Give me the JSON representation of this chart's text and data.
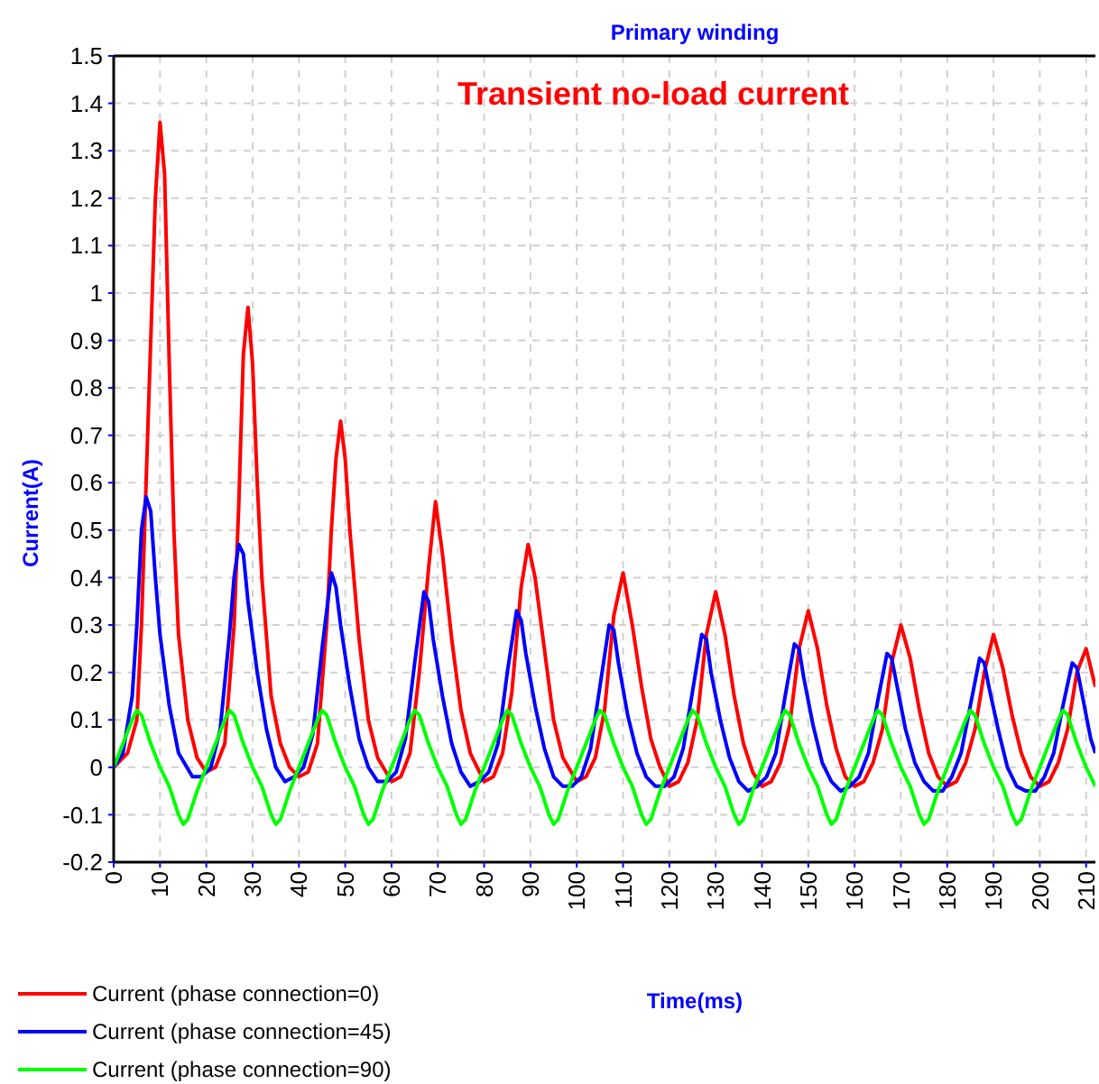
{
  "chart_data": {
    "type": "line",
    "title": "Primary winding",
    "subtitle": "Transient no-load current",
    "xlabel": "Time(ms)",
    "ylabel": "Current(A)",
    "xlim": [
      0,
      212
    ],
    "xticks": [
      0,
      10,
      20,
      30,
      40,
      50,
      60,
      70,
      80,
      90,
      100,
      110,
      120,
      130,
      140,
      150,
      160,
      170,
      180,
      190,
      200,
      210
    ],
    "ylim": [
      -0.2,
      1.5
    ],
    "yticks": [
      -0.2,
      -0.1,
      0,
      0.1,
      0.2,
      0.3,
      0.4,
      0.5,
      0.6,
      0.7,
      0.8,
      0.9,
      1,
      1.1,
      1.2,
      1.3,
      1.4,
      1.5
    ],
    "grid": true,
    "legend": "bottom left",
    "line_style": "solid",
    "series": [
      {
        "name": "Current (phase connection=0)",
        "color": "#ff0000",
        "x": [
          0,
          3,
          5,
          6,
          7,
          8,
          9,
          10,
          11,
          12,
          13,
          14,
          16,
          18,
          20,
          22,
          24,
          26,
          27,
          28,
          29,
          30,
          31,
          32,
          34,
          36,
          38,
          40,
          42,
          44,
          46,
          47,
          48,
          49,
          50,
          51,
          53,
          55,
          57,
          60,
          62,
          64,
          66,
          68,
          69.5,
          71,
          73,
          75,
          77,
          80,
          82,
          84,
          86,
          88,
          89.5,
          91,
          93,
          95,
          97,
          100,
          102,
          104,
          106,
          108,
          110,
          112,
          114,
          116,
          118,
          120,
          122,
          124,
          126,
          128,
          130,
          132,
          134,
          136,
          138,
          140,
          142,
          144,
          146,
          148,
          150,
          152,
          154,
          156,
          158,
          160,
          162,
          164,
          166,
          168,
          170,
          172,
          174,
          176,
          178,
          180,
          182,
          184,
          186,
          188,
          190,
          192,
          194,
          196,
          198,
          200,
          202,
          204,
          206,
          208,
          210,
          212
        ],
        "values": [
          0,
          0.03,
          0.1,
          0.3,
          0.6,
          0.9,
          1.2,
          1.36,
          1.25,
          0.85,
          0.5,
          0.28,
          0.1,
          0.02,
          -0.01,
          0,
          0.05,
          0.3,
          0.55,
          0.87,
          0.97,
          0.85,
          0.6,
          0.4,
          0.15,
          0.05,
          0,
          -0.02,
          -0.01,
          0.05,
          0.3,
          0.5,
          0.65,
          0.73,
          0.65,
          0.5,
          0.27,
          0.1,
          0.02,
          -0.03,
          -0.02,
          0.03,
          0.2,
          0.42,
          0.56,
          0.45,
          0.27,
          0.12,
          0.03,
          -0.03,
          -0.02,
          0.03,
          0.16,
          0.38,
          0.47,
          0.4,
          0.25,
          0.1,
          0.02,
          -0.03,
          -0.02,
          0.02,
          0.12,
          0.32,
          0.41,
          0.3,
          0.17,
          0.06,
          0,
          -0.04,
          -0.03,
          0.01,
          0.1,
          0.28,
          0.37,
          0.28,
          0.15,
          0.05,
          -0.01,
          -0.04,
          -0.03,
          0.01,
          0.09,
          0.25,
          0.33,
          0.25,
          0.13,
          0.04,
          -0.02,
          -0.04,
          -0.03,
          0.01,
          0.08,
          0.22,
          0.3,
          0.23,
          0.12,
          0.03,
          -0.02,
          -0.04,
          -0.03,
          0.01,
          0.08,
          0.2,
          0.28,
          0.21,
          0.11,
          0.03,
          -0.02,
          -0.04,
          -0.03,
          0.01,
          0.08,
          0.2,
          0.25,
          0.17
        ]
      },
      {
        "name": "Current (phase connection=45)",
        "color": "#0000ff",
        "x": [
          0,
          2,
          4,
          5,
          6,
          7,
          8,
          9,
          10,
          12,
          14,
          17,
          19,
          21,
          23,
          25,
          26,
          27,
          28,
          29,
          31,
          33,
          35,
          37,
          39,
          41,
          43,
          45,
          47,
          48,
          49,
          51,
          53,
          55,
          57,
          59,
          61,
          63,
          65,
          67,
          68,
          69,
          71,
          73,
          75,
          77,
          79,
          81,
          83,
          85,
          87,
          88,
          89,
          91,
          93,
          95,
          97,
          99,
          101,
          103,
          105,
          107,
          108,
          109,
          111,
          113,
          115,
          117,
          119,
          121,
          123,
          125,
          127,
          128,
          129,
          131,
          133,
          135,
          137,
          139,
          141,
          143,
          145,
          147,
          148,
          149,
          151,
          153,
          155,
          157,
          159,
          161,
          163,
          165,
          167,
          168,
          169,
          171,
          173,
          175,
          177,
          179,
          181,
          183,
          185,
          187,
          188,
          189,
          191,
          193,
          195,
          197,
          199,
          201,
          203,
          205,
          207,
          208,
          209,
          211,
          212
        ],
        "values": [
          0,
          0.03,
          0.15,
          0.3,
          0.5,
          0.57,
          0.54,
          0.4,
          0.28,
          0.13,
          0.03,
          -0.02,
          -0.02,
          0,
          0.08,
          0.28,
          0.4,
          0.47,
          0.45,
          0.35,
          0.2,
          0.08,
          0,
          -0.03,
          -0.02,
          0,
          0.07,
          0.25,
          0.41,
          0.38,
          0.3,
          0.17,
          0.06,
          0,
          -0.03,
          -0.03,
          -0.01,
          0.06,
          0.22,
          0.37,
          0.35,
          0.27,
          0.15,
          0.05,
          -0.01,
          -0.04,
          -0.03,
          -0.01,
          0.05,
          0.2,
          0.33,
          0.31,
          0.24,
          0.13,
          0.04,
          -0.02,
          -0.04,
          -0.04,
          -0.02,
          0.04,
          0.17,
          0.3,
          0.29,
          0.22,
          0.11,
          0.03,
          -0.02,
          -0.04,
          -0.04,
          -0.02,
          0.04,
          0.16,
          0.28,
          0.27,
          0.2,
          0.1,
          0.02,
          -0.03,
          -0.05,
          -0.04,
          -0.02,
          0.03,
          0.15,
          0.26,
          0.25,
          0.19,
          0.09,
          0.01,
          -0.03,
          -0.05,
          -0.04,
          -0.02,
          0.03,
          0.14,
          0.24,
          0.23,
          0.18,
          0.08,
          0.01,
          -0.03,
          -0.05,
          -0.05,
          -0.02,
          0.03,
          0.13,
          0.23,
          0.22,
          0.17,
          0.08,
          0,
          -0.04,
          -0.05,
          -0.05,
          -0.02,
          0.03,
          0.13,
          0.22,
          0.21,
          0.16,
          0.06,
          0.03
        ]
      },
      {
        "name": "Current (phase connection=90)",
        "color": "#00ff00",
        "x": [
          0,
          2,
          4,
          5,
          6,
          8,
          10,
          12,
          14,
          15,
          16,
          18,
          20,
          22,
          24,
          25,
          26,
          28,
          30,
          32,
          34,
          35,
          36,
          38,
          40,
          42,
          44,
          45,
          46,
          48,
          50,
          52,
          54,
          55,
          56,
          58,
          60,
          62,
          64,
          65,
          66,
          68,
          70,
          72,
          74,
          75,
          76,
          78,
          80,
          82,
          84,
          85,
          86,
          88,
          90,
          92,
          94,
          95,
          96,
          98,
          100,
          102,
          104,
          105,
          106,
          108,
          110,
          112,
          114,
          115,
          116,
          118,
          120,
          122,
          124,
          125,
          126,
          128,
          130,
          132,
          134,
          135,
          136,
          138,
          140,
          142,
          144,
          145,
          146,
          148,
          150,
          152,
          154,
          155,
          156,
          158,
          160,
          162,
          164,
          165,
          166,
          168,
          170,
          172,
          174,
          175,
          176,
          178,
          180,
          182,
          184,
          185,
          186,
          188,
          190,
          192,
          194,
          195,
          196,
          198,
          200,
          202,
          204,
          205,
          206,
          208,
          210,
          212
        ],
        "values": [
          0,
          0.05,
          0.1,
          0.12,
          0.11,
          0.05,
          0,
          -0.04,
          -0.1,
          -0.12,
          -0.11,
          -0.05,
          0,
          0.05,
          0.1,
          0.12,
          0.11,
          0.05,
          0,
          -0.04,
          -0.1,
          -0.12,
          -0.11,
          -0.05,
          0,
          0.05,
          0.1,
          0.12,
          0.11,
          0.05,
          0,
          -0.04,
          -0.1,
          -0.12,
          -0.11,
          -0.05,
          0,
          0.05,
          0.1,
          0.12,
          0.11,
          0.05,
          0,
          -0.04,
          -0.1,
          -0.12,
          -0.11,
          -0.05,
          0,
          0.05,
          0.1,
          0.12,
          0.11,
          0.05,
          0,
          -0.04,
          -0.1,
          -0.12,
          -0.11,
          -0.05,
          0,
          0.05,
          0.1,
          0.12,
          0.11,
          0.05,
          0,
          -0.04,
          -0.1,
          -0.12,
          -0.11,
          -0.05,
          0,
          0.05,
          0.1,
          0.12,
          0.11,
          0.05,
          0,
          -0.04,
          -0.1,
          -0.12,
          -0.11,
          -0.05,
          0,
          0.05,
          0.1,
          0.12,
          0.11,
          0.05,
          0,
          -0.04,
          -0.1,
          -0.12,
          -0.11,
          -0.05,
          0,
          0.05,
          0.1,
          0.12,
          0.11,
          0.05,
          0,
          -0.04,
          -0.1,
          -0.12,
          -0.11,
          -0.05,
          0,
          0.05,
          0.1,
          0.12,
          0.11,
          0.05,
          0,
          -0.04,
          -0.1,
          -0.12,
          -0.11,
          -0.05,
          0,
          0.05,
          0.1,
          0.12,
          0.11,
          0.05,
          0,
          -0.04
        ]
      }
    ]
  }
}
